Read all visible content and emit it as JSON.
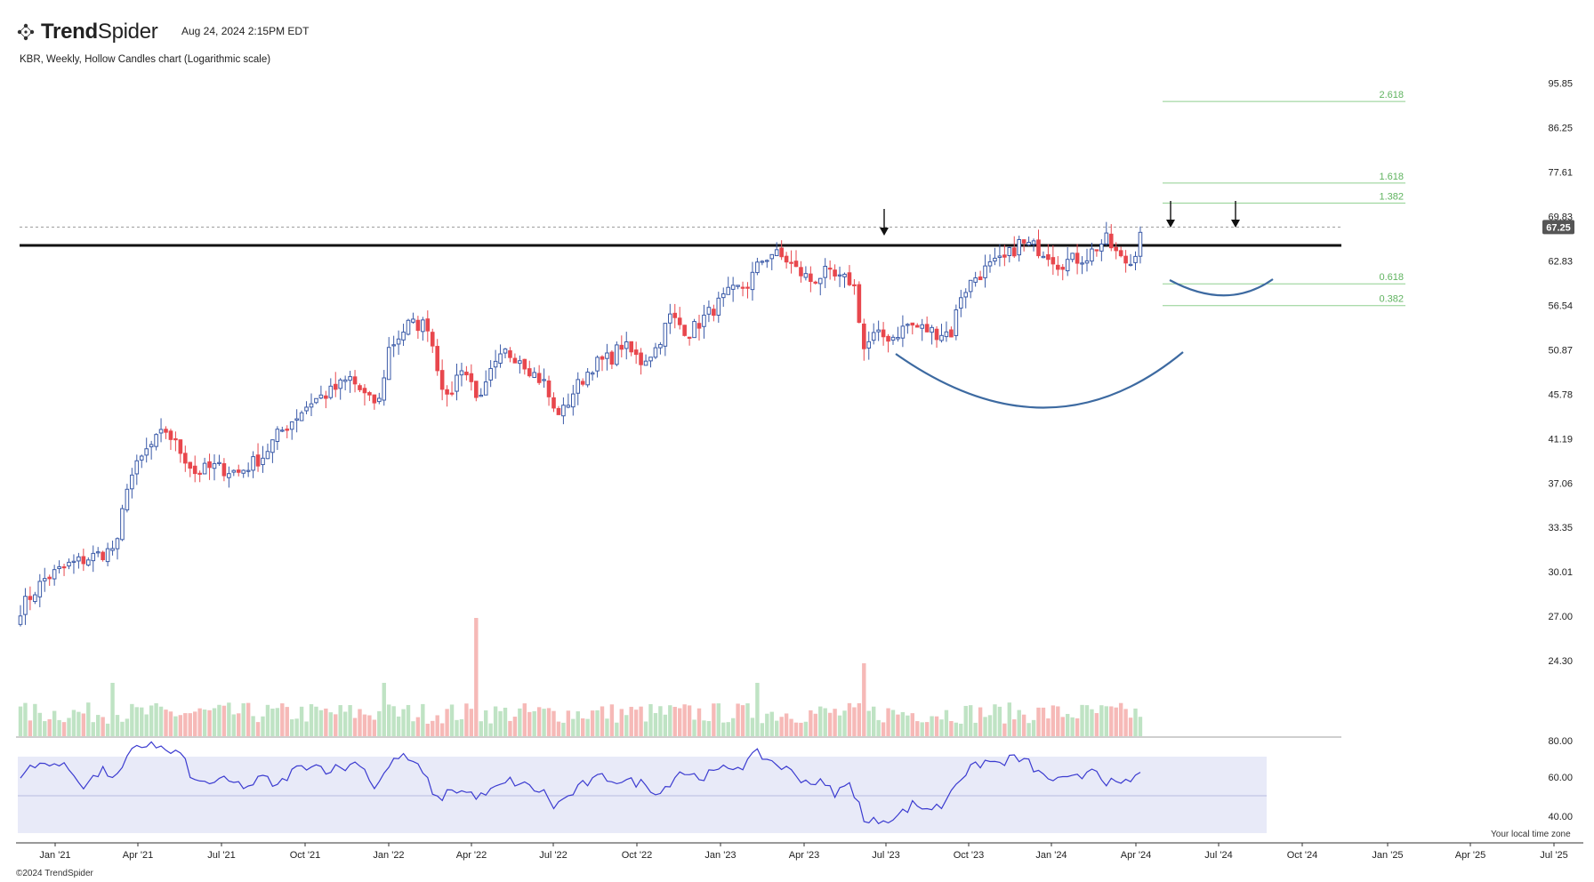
{
  "header": {
    "brand_bold": "Trend",
    "brand_light": "Spider",
    "timestamp": "Aug 24, 2024 2:15PM EDT",
    "subtitle": "KBR, Weekly, Hollow Candles chart (Logarithmic scale)",
    "logo_icon": "trendspider-dots-icon"
  },
  "footer": {
    "copyright": "©2024 TrendSpider",
    "tz_note": "Your local time zone"
  },
  "colors": {
    "up": "#3a5aa8",
    "down": "#e8474d",
    "vol_up": "#bfe3c4",
    "vol_down": "#f6b9b7",
    "rsi_line": "#3b3bd0",
    "rsi_band": "#e8eaf8",
    "fib": "#8fcf8f",
    "fib_text": "#5fb35f",
    "resistance": "#111111",
    "arc": "#3d6aa1",
    "price_tag": "#555555"
  },
  "chart_data": {
    "type": "candlestick",
    "symbol": "KBR",
    "interval": "Weekly",
    "scale": "log",
    "last_price": "67.25",
    "y_ticks": [
      "95.85",
      "86.25",
      "77.61",
      "69.83",
      "62.83",
      "56.54",
      "50.87",
      "45.78",
      "41.19",
      "37.06",
      "33.35",
      "30.01",
      "27.00",
      "24.30"
    ],
    "rsi_ticks": [
      "80.00",
      "60.00",
      "40.00"
    ],
    "x_ticks": [
      "Jan '21",
      "Apr '21",
      "Jul '21",
      "Oct '21",
      "Jan '22",
      "Apr '22",
      "Jul '22",
      "Oct '22",
      "Jan '23",
      "Apr '23",
      "Jul '23",
      "Oct '23",
      "Jan '24",
      "Apr '24",
      "Jul '24",
      "Oct '24",
      "Jan '25",
      "Apr '25",
      "Jul '25"
    ],
    "ylim": [
      22.0,
      97.0
    ],
    "resistance_level": 65.2,
    "fib_levels": [
      {
        "label": "2.618",
        "value": 91.8
      },
      {
        "label": "1.618",
        "value": 75.6
      },
      {
        "label": "1.382",
        "value": 72.1
      },
      {
        "label": "0.618",
        "value": 59.5
      },
      {
        "label": "0.382",
        "value": 56.5
      }
    ],
    "anchors": [
      {
        "week": 0,
        "price": 27.5
      },
      {
        "week": 5,
        "price": 29.5
      },
      {
        "week": 10,
        "price": 30.5
      },
      {
        "week": 14,
        "price": 31.0
      },
      {
        "week": 18,
        "price": 31.5
      },
      {
        "week": 20,
        "price": 32.0
      },
      {
        "week": 22,
        "price": 37.0
      },
      {
        "week": 26,
        "price": 40.0
      },
      {
        "week": 30,
        "price": 42.0
      },
      {
        "week": 33,
        "price": 40.0
      },
      {
        "week": 36,
        "price": 38.0
      },
      {
        "week": 40,
        "price": 38.5
      },
      {
        "week": 45,
        "price": 38.0
      },
      {
        "week": 50,
        "price": 39.5
      },
      {
        "week": 53,
        "price": 41.5
      },
      {
        "week": 56,
        "price": 43.0
      },
      {
        "week": 60,
        "price": 45.0
      },
      {
        "week": 64,
        "price": 46.0
      },
      {
        "week": 68,
        "price": 47.5
      },
      {
        "week": 72,
        "price": 45.0
      },
      {
        "week": 74,
        "price": 45.0
      },
      {
        "week": 76,
        "price": 51.0
      },
      {
        "week": 80,
        "price": 54.0
      },
      {
        "week": 84,
        "price": 54.0
      },
      {
        "week": 86,
        "price": 49.0
      },
      {
        "week": 88,
        "price": 45.0
      },
      {
        "week": 91,
        "price": 49.0
      },
      {
        "week": 95,
        "price": 45.0
      },
      {
        "week": 97,
        "price": 48.0
      },
      {
        "week": 100,
        "price": 50.5
      },
      {
        "week": 103,
        "price": 50.0
      },
      {
        "week": 106,
        "price": 48.0
      },
      {
        "week": 108,
        "price": 47.0
      },
      {
        "week": 110,
        "price": 44.0
      },
      {
        "week": 112,
        "price": 44.0
      },
      {
        "week": 114,
        "price": 46.0
      },
      {
        "week": 118,
        "price": 49.0
      },
      {
        "week": 122,
        "price": 50.0
      },
      {
        "week": 124,
        "price": 51.5
      },
      {
        "week": 128,
        "price": 49.5
      },
      {
        "week": 131,
        "price": 51.0
      },
      {
        "week": 134,
        "price": 55.0
      },
      {
        "week": 138,
        "price": 53.0
      },
      {
        "week": 142,
        "price": 55.5
      },
      {
        "week": 146,
        "price": 58.0
      },
      {
        "week": 150,
        "price": 59.5
      },
      {
        "week": 153,
        "price": 63.0
      },
      {
        "week": 155,
        "price": 64.0
      },
      {
        "week": 158,
        "price": 63.0
      },
      {
        "week": 160,
        "price": 61.5
      },
      {
        "week": 163,
        "price": 60.0
      },
      {
        "week": 166,
        "price": 61.0
      },
      {
        "week": 169,
        "price": 60.0
      },
      {
        "week": 171,
        "price": 60.0
      },
      {
        "week": 172,
        "price": 59.0
      },
      {
        "week": 173,
        "price": 55.0
      },
      {
        "week": 174,
        "price": 51.0
      },
      {
        "week": 176,
        "price": 52.5
      },
      {
        "week": 180,
        "price": 52.5
      },
      {
        "week": 183,
        "price": 54.0
      },
      {
        "week": 186,
        "price": 53.5
      },
      {
        "week": 189,
        "price": 53.0
      },
      {
        "week": 192,
        "price": 53.0
      },
      {
        "week": 194,
        "price": 58.0
      },
      {
        "week": 197,
        "price": 60.5
      },
      {
        "week": 200,
        "price": 62.0
      },
      {
        "week": 203,
        "price": 63.0
      },
      {
        "week": 206,
        "price": 65.5
      },
      {
        "week": 209,
        "price": 65.0
      },
      {
        "week": 212,
        "price": 64.0
      },
      {
        "week": 214,
        "price": 62.5
      },
      {
        "week": 217,
        "price": 63.0
      },
      {
        "week": 220,
        "price": 63.5
      },
      {
        "week": 222,
        "price": 65.0
      },
      {
        "week": 224,
        "price": 66.0
      },
      {
        "week": 227,
        "price": 63.0
      },
      {
        "week": 229,
        "price": 62.5
      },
      {
        "week": 231,
        "price": 66.5
      }
    ],
    "rsi_anchors": [
      {
        "week": 0,
        "value": 62
      },
      {
        "week": 6,
        "value": 68
      },
      {
        "week": 10,
        "value": 64
      },
      {
        "week": 13,
        "value": 56
      },
      {
        "week": 17,
        "value": 63
      },
      {
        "week": 20,
        "value": 60
      },
      {
        "week": 23,
        "value": 73
      },
      {
        "week": 27,
        "value": 78
      },
      {
        "week": 30,
        "value": 73
      },
      {
        "week": 33,
        "value": 72
      },
      {
        "week": 36,
        "value": 57
      },
      {
        "week": 42,
        "value": 58
      },
      {
        "week": 47,
        "value": 55
      },
      {
        "week": 50,
        "value": 60
      },
      {
        "week": 53,
        "value": 55
      },
      {
        "week": 56,
        "value": 63
      },
      {
        "week": 60,
        "value": 67
      },
      {
        "week": 63,
        "value": 64
      },
      {
        "week": 67,
        "value": 65
      },
      {
        "week": 70,
        "value": 68
      },
      {
        "week": 73,
        "value": 55
      },
      {
        "week": 76,
        "value": 65
      },
      {
        "week": 78,
        "value": 71
      },
      {
        "week": 81,
        "value": 68
      },
      {
        "week": 84,
        "value": 58
      },
      {
        "week": 86,
        "value": 48
      },
      {
        "week": 89,
        "value": 54
      },
      {
        "week": 92,
        "value": 52
      },
      {
        "week": 95,
        "value": 50
      },
      {
        "week": 98,
        "value": 54
      },
      {
        "week": 101,
        "value": 58
      },
      {
        "week": 105,
        "value": 55
      },
      {
        "week": 108,
        "value": 52
      },
      {
        "week": 110,
        "value": 45
      },
      {
        "week": 113,
        "value": 50
      },
      {
        "week": 116,
        "value": 56
      },
      {
        "week": 120,
        "value": 60
      },
      {
        "week": 124,
        "value": 58
      },
      {
        "week": 128,
        "value": 57
      },
      {
        "week": 132,
        "value": 52
      },
      {
        "week": 136,
        "value": 63
      },
      {
        "week": 140,
        "value": 60
      },
      {
        "week": 143,
        "value": 62
      },
      {
        "week": 146,
        "value": 65
      },
      {
        "week": 149,
        "value": 66
      },
      {
        "week": 152,
        "value": 72
      },
      {
        "week": 155,
        "value": 68
      },
      {
        "week": 158,
        "value": 64
      },
      {
        "week": 162,
        "value": 58
      },
      {
        "week": 165,
        "value": 57
      },
      {
        "week": 168,
        "value": 52
      },
      {
        "week": 171,
        "value": 56
      },
      {
        "week": 173,
        "value": 48
      },
      {
        "week": 174,
        "value": 36
      },
      {
        "week": 177,
        "value": 38
      },
      {
        "week": 181,
        "value": 40
      },
      {
        "week": 184,
        "value": 46
      },
      {
        "week": 187,
        "value": 44
      },
      {
        "week": 190,
        "value": 45
      },
      {
        "week": 193,
        "value": 58
      },
      {
        "week": 196,
        "value": 64
      },
      {
        "week": 199,
        "value": 68
      },
      {
        "week": 202,
        "value": 67
      },
      {
        "week": 205,
        "value": 70
      },
      {
        "week": 208,
        "value": 67
      },
      {
        "week": 211,
        "value": 60
      },
      {
        "week": 215,
        "value": 58
      },
      {
        "week": 219,
        "value": 60
      },
      {
        "week": 221,
        "value": 66
      },
      {
        "week": 224,
        "value": 58
      },
      {
        "week": 227,
        "value": 55
      },
      {
        "week": 231,
        "value": 62
      }
    ]
  }
}
